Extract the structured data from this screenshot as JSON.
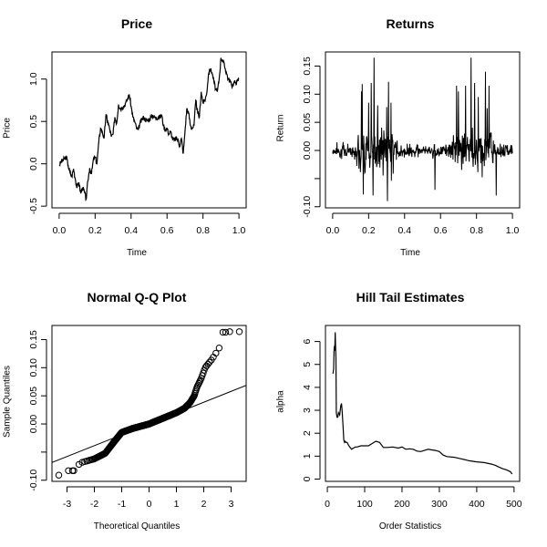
{
  "chart_data": [
    {
      "id": "price",
      "type": "line",
      "title": "Price",
      "xlabel": "Time",
      "ylabel": "Price",
      "xlim": [
        -0.04,
        1.04
      ],
      "ylim": [
        -0.52,
        1.32
      ],
      "xticks": [
        0.0,
        0.2,
        0.4,
        0.6,
        0.8,
        1.0
      ],
      "xtick_labels": [
        "0.0",
        "0.2",
        "0.4",
        "0.6",
        "0.8",
        "1.0"
      ],
      "yticks": [
        -0.5,
        0.0,
        0.5,
        1.0
      ],
      "ytick_labels": [
        "-0.5",
        "0.0",
        "0.5",
        "1.0"
      ],
      "x": [
        0.0,
        0.01,
        0.02,
        0.03,
        0.04,
        0.05,
        0.06,
        0.07,
        0.08,
        0.09,
        0.1,
        0.11,
        0.12,
        0.13,
        0.14,
        0.15,
        0.16,
        0.17,
        0.18,
        0.19,
        0.2,
        0.21,
        0.22,
        0.23,
        0.24,
        0.25,
        0.26,
        0.27,
        0.28,
        0.29,
        0.3,
        0.31,
        0.32,
        0.33,
        0.34,
        0.35,
        0.36,
        0.37,
        0.38,
        0.39,
        0.4,
        0.41,
        0.42,
        0.43,
        0.44,
        0.45,
        0.46,
        0.47,
        0.48,
        0.49,
        0.5,
        0.51,
        0.52,
        0.53,
        0.54,
        0.55,
        0.56,
        0.57,
        0.58,
        0.59,
        0.6,
        0.61,
        0.62,
        0.63,
        0.64,
        0.65,
        0.66,
        0.67,
        0.68,
        0.69,
        0.7,
        0.71,
        0.72,
        0.73,
        0.74,
        0.75,
        0.76,
        0.77,
        0.78,
        0.79,
        0.8,
        0.81,
        0.82,
        0.83,
        0.84,
        0.85,
        0.86,
        0.87,
        0.88,
        0.89,
        0.9,
        0.91,
        0.92,
        0.93,
        0.94,
        0.95,
        0.96,
        0.97,
        0.98,
        0.99,
        1.0
      ],
      "values": [
        -0.02,
        0.02,
        0.04,
        0.06,
        0.08,
        -0.02,
        -0.1,
        -0.15,
        -0.06,
        -0.18,
        -0.28,
        -0.22,
        -0.35,
        -0.28,
        -0.33,
        -0.42,
        -0.2,
        -0.05,
        -0.12,
        0.05,
        0.08,
        0.0,
        0.25,
        0.42,
        0.38,
        0.3,
        0.58,
        0.5,
        0.42,
        0.32,
        0.35,
        0.55,
        0.48,
        0.7,
        0.65,
        0.67,
        0.68,
        0.72,
        0.76,
        0.82,
        0.68,
        0.55,
        0.5,
        0.42,
        0.4,
        0.48,
        0.52,
        0.55,
        0.52,
        0.51,
        0.52,
        0.55,
        0.57,
        0.55,
        0.54,
        0.55,
        0.55,
        0.58,
        0.45,
        0.4,
        0.42,
        0.35,
        0.38,
        0.3,
        0.28,
        0.3,
        0.28,
        0.22,
        0.3,
        0.12,
        0.38,
        0.65,
        0.6,
        0.45,
        0.42,
        0.45,
        0.75,
        0.6,
        0.55,
        0.85,
        0.72,
        0.75,
        0.82,
        1.05,
        1.12,
        1.08,
        0.98,
        0.88,
        0.85,
        1.0,
        1.25,
        1.22,
        1.15,
        1.08,
        1.0,
        0.98,
        0.92,
        0.95,
        0.96,
        0.97,
        1.0
      ]
    },
    {
      "id": "returns",
      "type": "line",
      "title": "Returns",
      "xlabel": "Time",
      "ylabel": "Return",
      "xlim": [
        -0.04,
        1.04
      ],
      "ylim": [
        -0.102,
        0.175
      ],
      "xticks": [
        0.0,
        0.2,
        0.4,
        0.6,
        0.8,
        1.0
      ],
      "xtick_labels": [
        "0.0",
        "0.2",
        "0.4",
        "0.6",
        "0.8",
        "1.0"
      ],
      "yticks": [
        -0.1,
        -0.05,
        0.0,
        0.05,
        0.1,
        0.15
      ],
      "ytick_labels": [
        "-0.10",
        "",
        "0.00",
        "0.05",
        "0.10",
        "0.15"
      ],
      "n_points": 500,
      "seed": 7,
      "volatility_profile": [
        {
          "from": 0.0,
          "to": 0.13,
          "sigma": 0.015
        },
        {
          "from": 0.13,
          "to": 0.35,
          "sigma": 0.045
        },
        {
          "from": 0.35,
          "to": 0.48,
          "sigma": 0.018
        },
        {
          "from": 0.48,
          "to": 0.55,
          "sigma": 0.008
        },
        {
          "from": 0.55,
          "to": 0.66,
          "sigma": 0.015
        },
        {
          "from": 0.66,
          "to": 0.9,
          "sigma": 0.042
        },
        {
          "from": 0.9,
          "to": 1.0,
          "sigma": 0.015
        }
      ],
      "spikes": [
        {
          "x": 0.16,
          "y": 0.105
        },
        {
          "x": 0.165,
          "y": 0.118
        },
        {
          "x": 0.17,
          "y": 0.163
        },
        {
          "x": 0.2,
          "y": 0.085
        },
        {
          "x": 0.215,
          "y": 0.12
        },
        {
          "x": 0.225,
          "y": 0.165
        },
        {
          "x": 0.23,
          "y": 0.165
        },
        {
          "x": 0.25,
          "y": 0.08
        },
        {
          "x": 0.3,
          "y": 0.077
        },
        {
          "x": 0.31,
          "y": 0.122
        },
        {
          "x": 0.325,
          "y": 0.085
        },
        {
          "x": 0.69,
          "y": 0.115
        },
        {
          "x": 0.7,
          "y": 0.105
        },
        {
          "x": 0.74,
          "y": 0.115
        },
        {
          "x": 0.77,
          "y": 0.165
        },
        {
          "x": 0.79,
          "y": 0.12
        },
        {
          "x": 0.81,
          "y": 0.095
        },
        {
          "x": 0.85,
          "y": 0.14
        },
        {
          "x": 0.86,
          "y": 0.075
        },
        {
          "x": 0.87,
          "y": 0.115
        },
        {
          "x": 0.305,
          "y": -0.09
        },
        {
          "x": 0.17,
          "y": -0.078
        },
        {
          "x": 0.225,
          "y": -0.08
        },
        {
          "x": 0.57,
          "y": -0.07
        },
        {
          "x": 0.91,
          "y": -0.08
        }
      ]
    },
    {
      "id": "qq",
      "type": "scatter",
      "title": "Normal Q-Q Plot",
      "xlabel": "Theoretical Quantiles",
      "ylabel": "Sample Quantiles",
      "xlim": [
        -3.55,
        3.55
      ],
      "ylim": [
        -0.102,
        0.175
      ],
      "xticks": [
        -3,
        -2,
        -1,
        0,
        1,
        2,
        3
      ],
      "xtick_labels": [
        "-3",
        "-2",
        "-1",
        "0",
        "1",
        "2",
        "3"
      ],
      "yticks": [
        -0.1,
        -0.05,
        0.0,
        0.05,
        0.1,
        0.15
      ],
      "ytick_labels": [
        "-0.10",
        "",
        "0.00",
        "0.05",
        "0.10",
        "0.15"
      ],
      "reference_line": {
        "intercept": 0.0,
        "slope": 0.0193
      },
      "curve_knots": [
        [
          -3.3,
          -0.091
        ],
        [
          -2.95,
          -0.083
        ],
        [
          -2.8,
          -0.083
        ],
        [
          -2.5,
          -0.069
        ],
        [
          -2.0,
          -0.062
        ],
        [
          -1.6,
          -0.052
        ],
        [
          -1.3,
          -0.033
        ],
        [
          -1.0,
          -0.015
        ],
        [
          -0.6,
          -0.008
        ],
        [
          0.0,
          0.0
        ],
        [
          0.6,
          0.012
        ],
        [
          1.0,
          0.02
        ],
        [
          1.3,
          0.028
        ],
        [
          1.5,
          0.038
        ],
        [
          1.65,
          0.05
        ],
        [
          1.75,
          0.065
        ],
        [
          1.9,
          0.08
        ],
        [
          2.05,
          0.1
        ],
        [
          2.3,
          0.115
        ],
        [
          2.5,
          0.13
        ],
        [
          2.65,
          0.142
        ]
      ],
      "outliers": [
        [
          -3.3,
          -0.091
        ],
        [
          -2.95,
          -0.083
        ],
        [
          -2.8,
          -0.083
        ],
        [
          -2.75,
          -0.083
        ],
        [
          2.7,
          0.163
        ],
        [
          2.8,
          0.163
        ],
        [
          2.95,
          0.164
        ],
        [
          3.3,
          0.164
        ]
      ]
    },
    {
      "id": "hill",
      "type": "line",
      "title": "Hill Tail Estimates",
      "xlabel": "Order Statistics",
      "ylabel": "alpha",
      "xlim": [
        -5,
        515
      ],
      "ylim": [
        -0.1,
        6.7
      ],
      "xticks": [
        0,
        100,
        200,
        300,
        400,
        500
      ],
      "xtick_labels": [
        "0",
        "100",
        "200",
        "300",
        "400",
        "500"
      ],
      "yticks": [
        0,
        1,
        2,
        3,
        4,
        5,
        6
      ],
      "ytick_labels": [
        "0",
        "1",
        "2",
        "3",
        "4",
        "5",
        "6"
      ],
      "x": [
        15,
        17,
        18,
        19,
        20,
        21,
        22,
        23,
        24,
        26,
        28,
        30,
        33,
        36,
        38,
        40,
        42,
        44,
        46,
        48,
        50,
        53,
        56,
        60,
        65,
        70,
        75,
        80,
        90,
        100,
        110,
        120,
        130,
        140,
        150,
        160,
        175,
        190,
        200,
        210,
        220,
        230,
        240,
        250,
        260,
        270,
        280,
        290,
        300,
        310,
        320,
        340,
        360,
        380,
        400,
        420,
        440,
        450,
        460,
        470,
        480,
        490,
        495
      ],
      "values": [
        4.6,
        4.8,
        5.6,
        5.8,
        5.6,
        6.4,
        5.8,
        5.3,
        2.9,
        2.7,
        2.7,
        2.9,
        2.8,
        3.2,
        3.3,
        2.9,
        2.3,
        1.7,
        1.6,
        1.65,
        1.6,
        1.6,
        1.5,
        1.4,
        1.3,
        1.35,
        1.4,
        1.4,
        1.45,
        1.45,
        1.45,
        1.55,
        1.65,
        1.6,
        1.38,
        1.38,
        1.4,
        1.35,
        1.4,
        1.3,
        1.32,
        1.3,
        1.22,
        1.2,
        1.25,
        1.3,
        1.27,
        1.25,
        1.2,
        1.05,
        0.98,
        0.95,
        0.88,
        0.8,
        0.75,
        0.72,
        0.65,
        0.6,
        0.52,
        0.45,
        0.4,
        0.32,
        0.22
      ]
    }
  ]
}
